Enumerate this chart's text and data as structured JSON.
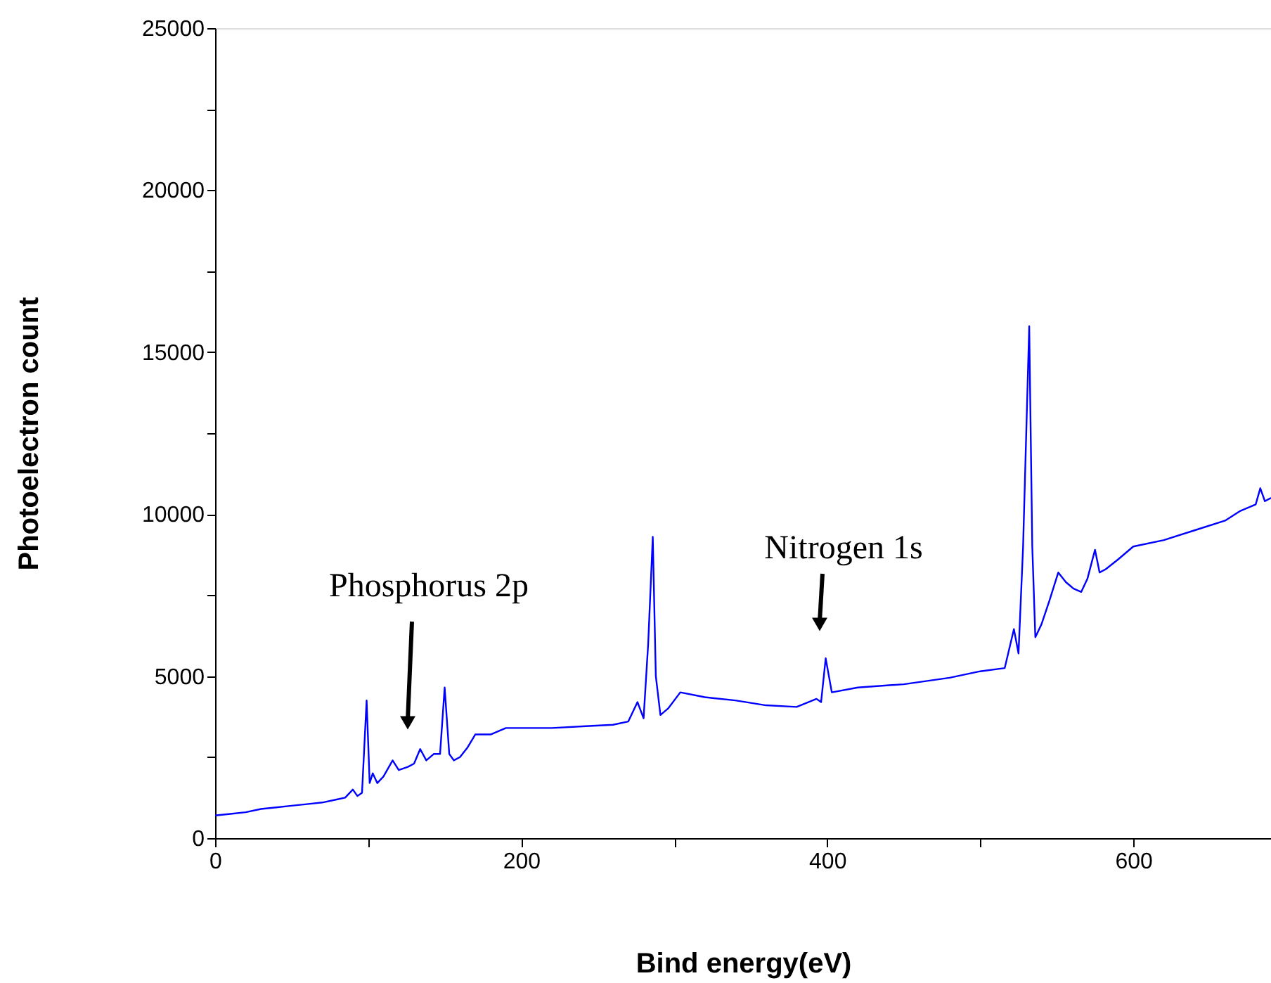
{
  "chart_data": {
    "type": "line",
    "xlabel": "Bind energy(eV)",
    "ylabel": "Photoelectron count",
    "x": [
      0,
      10,
      20,
      30,
      40,
      50,
      60,
      70,
      80,
      85,
      90,
      93,
      96,
      99,
      101,
      103,
      106,
      110,
      116,
      120,
      126,
      130,
      134,
      138,
      143,
      147,
      150,
      153,
      156,
      160,
      165,
      170,
      180,
      190,
      200,
      220,
      240,
      260,
      270,
      276,
      280,
      283,
      286,
      288,
      291,
      296,
      304,
      320,
      340,
      360,
      380,
      393,
      396,
      399,
      403,
      420,
      450,
      480,
      500,
      516,
      522,
      525,
      528,
      532,
      534,
      536,
      540,
      545,
      551,
      556,
      561,
      566,
      570,
      575,
      578,
      582,
      590,
      600,
      620,
      640,
      660,
      670,
      680,
      683,
      686,
      690
    ],
    "series": [
      {
        "color": "#0000ff",
        "values": [
          700,
          750,
          800,
          900,
          950,
          1000,
          1050,
          1100,
          1200,
          1250,
          1500,
          1300,
          1400,
          4250,
          1700,
          2000,
          1700,
          1900,
          2400,
          2100,
          2200,
          2300,
          2750,
          2400,
          2600,
          2600,
          4650,
          2600,
          2400,
          2500,
          2800,
          3200,
          3200,
          3400,
          3400,
          3400,
          3450,
          3500,
          3600,
          4200,
          3700,
          6000,
          9300,
          5000,
          3800,
          4000,
          4500,
          4350,
          4250,
          4100,
          4050,
          4300,
          4200,
          5550,
          4500,
          4650,
          4750,
          4950,
          5150,
          5250,
          6450,
          5700,
          9000,
          15800,
          9000,
          6200,
          6600,
          7300,
          8200,
          7900,
          7700,
          7600,
          8000,
          8900,
          8200,
          8300,
          8600,
          9000,
          9200,
          9500,
          9800,
          10100,
          10300,
          10800,
          10400,
          10500
        ]
      }
    ],
    "xlim": [
      0,
      690
    ],
    "ylim": [
      0,
      25000
    ],
    "xticks": [
      0,
      {
        "value": 100,
        "label": null
      },
      200,
      {
        "value": 300,
        "label": null
      },
      400,
      {
        "value": 500,
        "label": null
      },
      600
    ],
    "yticks": [
      0,
      {
        "value": 2500,
        "label": null
      },
      5000,
      {
        "value": 7500,
        "label": null
      },
      10000,
      {
        "value": 12500,
        "label": null
      },
      15000,
      {
        "value": 17500,
        "label": null
      },
      20000,
      {
        "value": 22500,
        "label": null
      },
      25000
    ],
    "annotations": [
      "Phosphorus 2p",
      "Nitrogen 1s"
    ],
    "grid": false
  }
}
